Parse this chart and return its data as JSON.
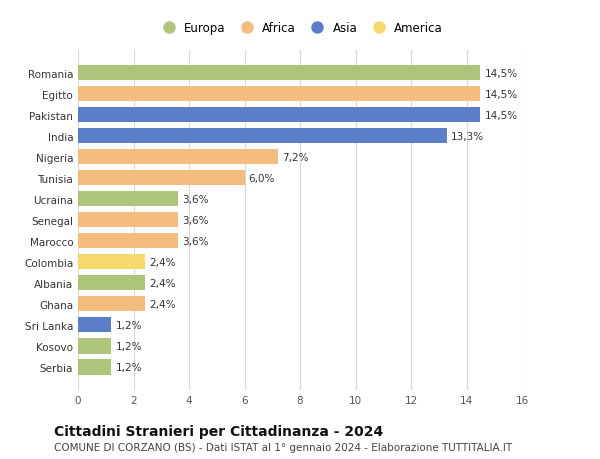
{
  "countries": [
    "Romania",
    "Egitto",
    "Pakistan",
    "India",
    "Nigeria",
    "Tunisia",
    "Ucraina",
    "Senegal",
    "Marocco",
    "Colombia",
    "Albania",
    "Ghana",
    "Sri Lanka",
    "Kosovo",
    "Serbia"
  ],
  "values": [
    14.5,
    14.5,
    14.5,
    13.3,
    7.2,
    6.0,
    3.6,
    3.6,
    3.6,
    2.4,
    2.4,
    2.4,
    1.2,
    1.2,
    1.2
  ],
  "labels": [
    "14,5%",
    "14,5%",
    "14,5%",
    "13,3%",
    "7,2%",
    "6,0%",
    "3,6%",
    "3,6%",
    "3,6%",
    "2,4%",
    "2,4%",
    "2,4%",
    "1,2%",
    "1,2%",
    "1,2%"
  ],
  "colors": [
    "#adc47a",
    "#f5bc80",
    "#5b7ec9",
    "#5b7ec9",
    "#f5bc80",
    "#f5bc80",
    "#adc47a",
    "#f5bc80",
    "#f5bc80",
    "#f5d96a",
    "#adc47a",
    "#f5bc80",
    "#5b7ec9",
    "#adc47a",
    "#adc47a"
  ],
  "legend_labels": [
    "Europa",
    "Africa",
    "Asia",
    "America"
  ],
  "legend_colors": [
    "#adc47a",
    "#f5bc80",
    "#5b7ec9",
    "#f5d96a"
  ],
  "xlim": [
    0,
    16
  ],
  "xticks": [
    0,
    2,
    4,
    6,
    8,
    10,
    12,
    14,
    16
  ],
  "title": "Cittadini Stranieri per Cittadinanza - 2024",
  "subtitle": "COMUNE DI CORZANO (BS) - Dati ISTAT al 1° gennaio 2024 - Elaborazione TUTTITALIA.IT",
  "background_color": "#ffffff",
  "grid_color": "#d8d8d8",
  "bar_height": 0.72,
  "label_fontsize": 7.5,
  "tick_fontsize": 7.5,
  "title_fontsize": 10,
  "subtitle_fontsize": 7.5
}
